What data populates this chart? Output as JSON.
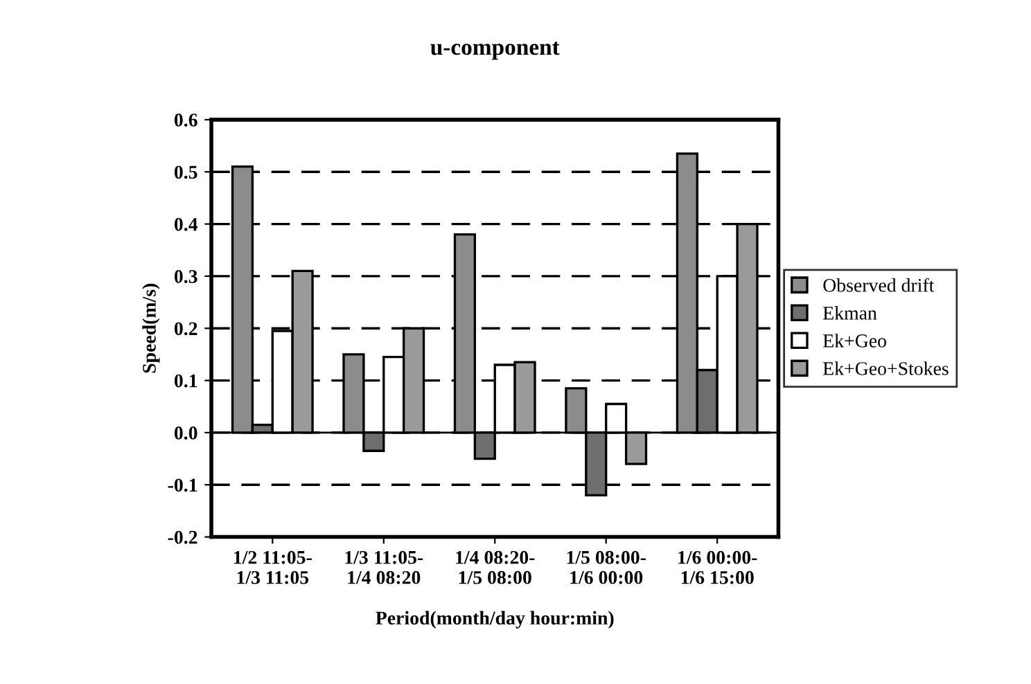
{
  "chart_data": {
    "type": "bar",
    "title": "u-component",
    "xlabel": "Period(month/day hour:min)",
    "ylabel": "Speed(m/s)",
    "categories": [
      "1/2 11:05-\n1/3 11:05",
      "1/3 11:05-\n1/4 08:20",
      "1/4 08:20-\n1/5 08:00",
      "1/5 08:00-\n1/6 00:00",
      "1/6 00:00-\n1/6 15:00"
    ],
    "series": [
      {
        "name": "Observed drift",
        "color": "#8c8c8c",
        "values": [
          0.51,
          0.15,
          0.38,
          0.085,
          0.535
        ]
      },
      {
        "name": "Ekman",
        "color": "#6e6e6e",
        "values": [
          0.015,
          -0.035,
          -0.05,
          -0.12,
          0.12
        ]
      },
      {
        "name": "Ek+Geo",
        "color": "#ffffff",
        "values": [
          0.195,
          0.145,
          0.13,
          0.055,
          0.3
        ]
      },
      {
        "name": "Ek+Geo+Stokes",
        "color": "#9a9a9a",
        "values": [
          0.31,
          0.2,
          0.135,
          -0.06,
          0.4
        ]
      }
    ],
    "ylim": [
      -0.2,
      0.6
    ],
    "yticks": [
      {
        "value": -0.2,
        "label": "-0.2"
      },
      {
        "value": -0.1,
        "label": "-0.1"
      },
      {
        "value": 0.0,
        "label": "0.0"
      },
      {
        "value": 0.1,
        "label": "0.1"
      },
      {
        "value": 0.2,
        "label": "0.2"
      },
      {
        "value": 0.3,
        "label": "0.3"
      },
      {
        "value": 0.4,
        "label": "0.4"
      },
      {
        "value": 0.5,
        "label": "0.5"
      },
      {
        "value": 0.6,
        "label": "0.6"
      }
    ],
    "grid": "y",
    "legend": "right",
    "line_style": "dashed"
  }
}
